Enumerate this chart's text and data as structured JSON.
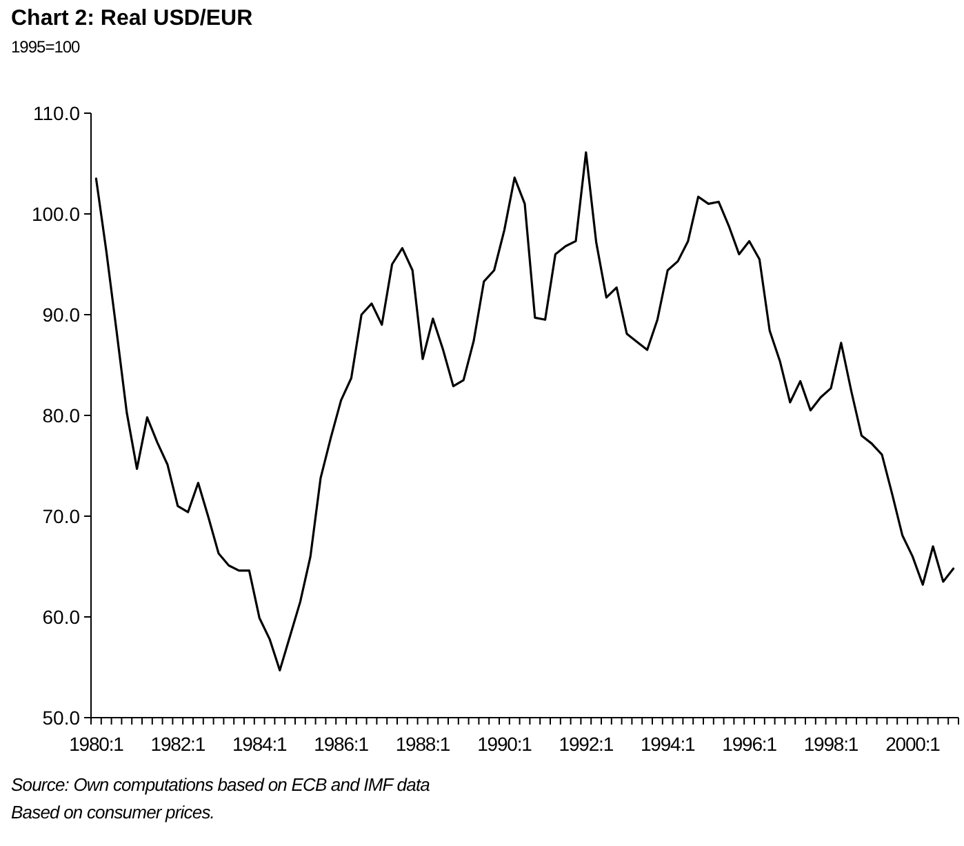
{
  "chart_data": {
    "type": "line",
    "title": "Chart 2: Real USD/EUR",
    "subtitle": "1995=100",
    "categories": [
      "1980:1",
      null,
      null,
      null,
      null,
      null,
      null,
      null,
      "1982:1",
      null,
      null,
      null,
      null,
      null,
      null,
      null,
      "1984:1",
      null,
      null,
      null,
      null,
      null,
      null,
      null,
      "1986:1",
      null,
      null,
      null,
      null,
      null,
      null,
      null,
      "1988:1",
      null,
      null,
      null,
      null,
      null,
      null,
      null,
      "1990:1",
      null,
      null,
      null,
      null,
      null,
      null,
      null,
      "1992:1",
      null,
      null,
      null,
      null,
      null,
      null,
      null,
      "1994:1",
      null,
      null,
      null,
      null,
      null,
      null,
      null,
      "1996:1",
      null,
      null,
      null,
      null,
      null,
      null,
      null,
      "1998:1",
      null,
      null,
      null,
      null,
      null,
      null,
      null,
      "2000:1",
      null,
      null,
      null,
      null
    ],
    "series": [
      {
        "color": "#000000",
        "values": [
          103.5,
          96.3,
          88.4,
          80.3,
          74.7,
          79.8,
          77.3,
          75.1,
          71.0,
          70.4,
          73.3,
          69.9,
          66.3,
          65.1,
          64.6,
          64.6,
          59.9,
          57.8,
          54.7,
          58.1,
          61.5,
          66.0,
          73.8,
          77.8,
          81.5,
          83.7,
          90.0,
          91.1,
          89.0,
          95.0,
          96.6,
          94.4,
          85.6,
          89.6,
          86.5,
          82.9,
          83.5,
          87.4,
          93.3,
          94.4,
          98.4,
          103.6,
          101.0,
          89.7,
          89.5,
          96.0,
          96.8,
          97.3,
          106.1,
          97.2,
          91.7,
          92.7,
          88.1,
          87.3,
          86.5,
          89.5,
          94.4,
          95.3,
          97.3,
          101.7,
          101.0,
          101.2,
          98.8,
          96.0,
          97.3,
          95.5,
          88.4,
          85.4,
          81.3,
          83.4,
          80.5,
          81.8,
          82.7,
          87.2,
          82.4,
          78.0,
          77.2,
          76.1,
          72.2,
          68.1,
          66.0,
          63.2,
          67.0,
          63.5,
          64.8
        ]
      }
    ],
    "ylim": [
      50,
      110
    ],
    "yticks": [
      {
        "value": 50,
        "label": "50.0"
      },
      {
        "value": 60,
        "label": "60.0"
      },
      {
        "value": 70,
        "label": "70.0"
      },
      {
        "value": 80,
        "label": "80.0"
      },
      {
        "value": 90,
        "label": "90.0"
      },
      {
        "value": 100,
        "label": "100.0"
      },
      {
        "value": 110,
        "label": "110.0"
      }
    ],
    "grid": false,
    "marker": "none",
    "line_style": "solid",
    "annotations": [
      "Source: Own computations based on ECB and IMF data",
      "Based on consumer prices."
    ]
  }
}
